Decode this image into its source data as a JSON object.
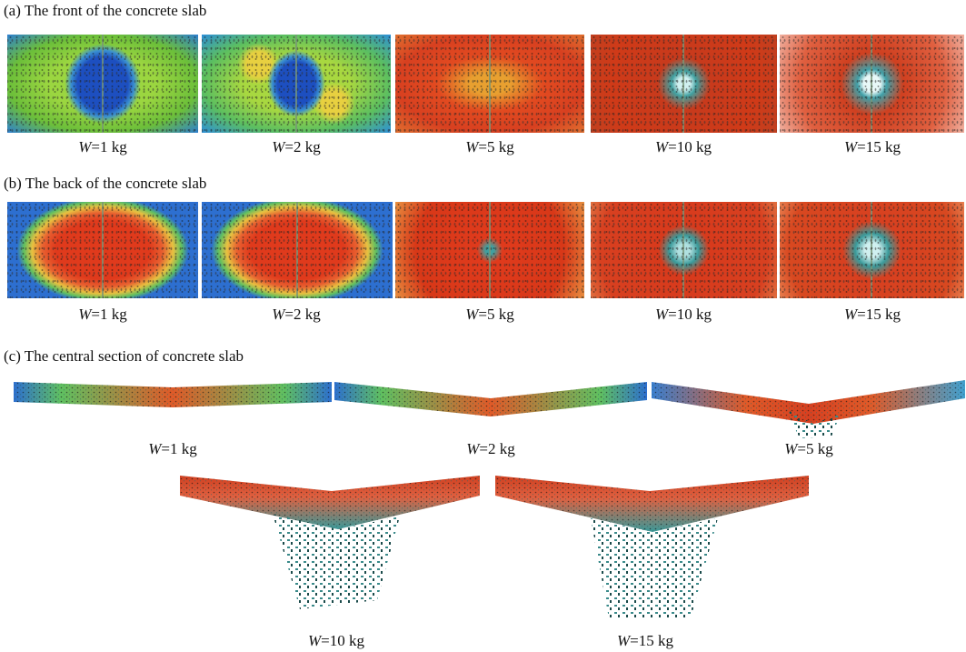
{
  "sections": [
    {
      "title": "(a) The front of the concrete slab",
      "panels": [
        {
          "symbol": "W",
          "label": "=1 kg"
        },
        {
          "symbol": "W",
          "label": "=2 kg"
        },
        {
          "symbol": "W",
          "label": "=5 kg"
        },
        {
          "symbol": "W",
          "label": "=10 kg"
        },
        {
          "symbol": "W",
          "label": "=15 kg"
        }
      ]
    },
    {
      "title": "(b) The back of the concrete slab",
      "panels": [
        {
          "symbol": "W",
          "label": "=1 kg"
        },
        {
          "symbol": "W",
          "label": "=2 kg"
        },
        {
          "symbol": "W",
          "label": "=5 kg"
        },
        {
          "symbol": "W",
          "label": "=10 kg"
        },
        {
          "symbol": "W",
          "label": "=15 kg"
        }
      ]
    },
    {
      "title": "(c) The central section of concrete slab",
      "panels": [
        {
          "symbol": "W",
          "label": "=1 kg"
        },
        {
          "symbol": "W",
          "label": "=2 kg"
        },
        {
          "symbol": "W",
          "label": "=5 kg"
        },
        {
          "symbol": "W",
          "label": "=10 kg"
        },
        {
          "symbol": "W",
          "label": "=15 kg"
        }
      ]
    }
  ]
}
